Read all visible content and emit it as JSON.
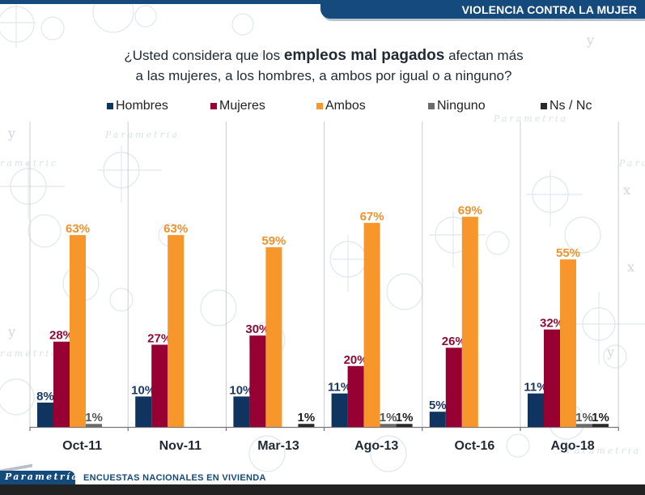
{
  "header": {
    "section_title": "VIOLENCIA CONTRA LA MUJER"
  },
  "question": {
    "part1": "¿Usted considera que los ",
    "bold": "empleos mal pagados",
    "part2": " afectan más",
    "line2": "a las mujeres, a los hombres, a ambos por igual o a ninguno?"
  },
  "footer": {
    "logo": "Parametría",
    "caption": "ENCUESTAS NACIONALES  EN VIVIENDA"
  },
  "chart_data": {
    "type": "bar",
    "title": "¿Usted considera que los empleos mal pagados afectan más a las mujeres, a los hombres, a ambos por igual o a ninguno?",
    "xlabel": "",
    "ylabel": "",
    "ylim": [
      0,
      100
    ],
    "grid": false,
    "legend_position": "top",
    "categories": [
      "Oct-11",
      "Nov-11",
      "Mar-13",
      "Ago-13",
      "Oct-16",
      "Ago-18"
    ],
    "series": [
      {
        "name": "Hombres",
        "color": "#0f3460",
        "label_color": "#1b3a63",
        "values": [
          8,
          10,
          10,
          11,
          5,
          11
        ]
      },
      {
        "name": "Mujeres",
        "color": "#960032",
        "label_color": "#8f0b35",
        "values": [
          28,
          27,
          30,
          20,
          26,
          32
        ]
      },
      {
        "name": "Ambos",
        "color": "#f7972b",
        "label_color": "#ef922e",
        "values": [
          63,
          63,
          59,
          67,
          69,
          55
        ]
      },
      {
        "name": "Ninguno",
        "color": "#6b6b6b",
        "label_color": "#555555",
        "values": [
          1,
          null,
          null,
          1,
          null,
          1
        ]
      },
      {
        "name": "Ns / Nc",
        "color": "#2a2a2a",
        "label_color": "#1e1e1e",
        "values": [
          null,
          null,
          1,
          1,
          null,
          1
        ]
      }
    ],
    "value_suffix": "%"
  }
}
